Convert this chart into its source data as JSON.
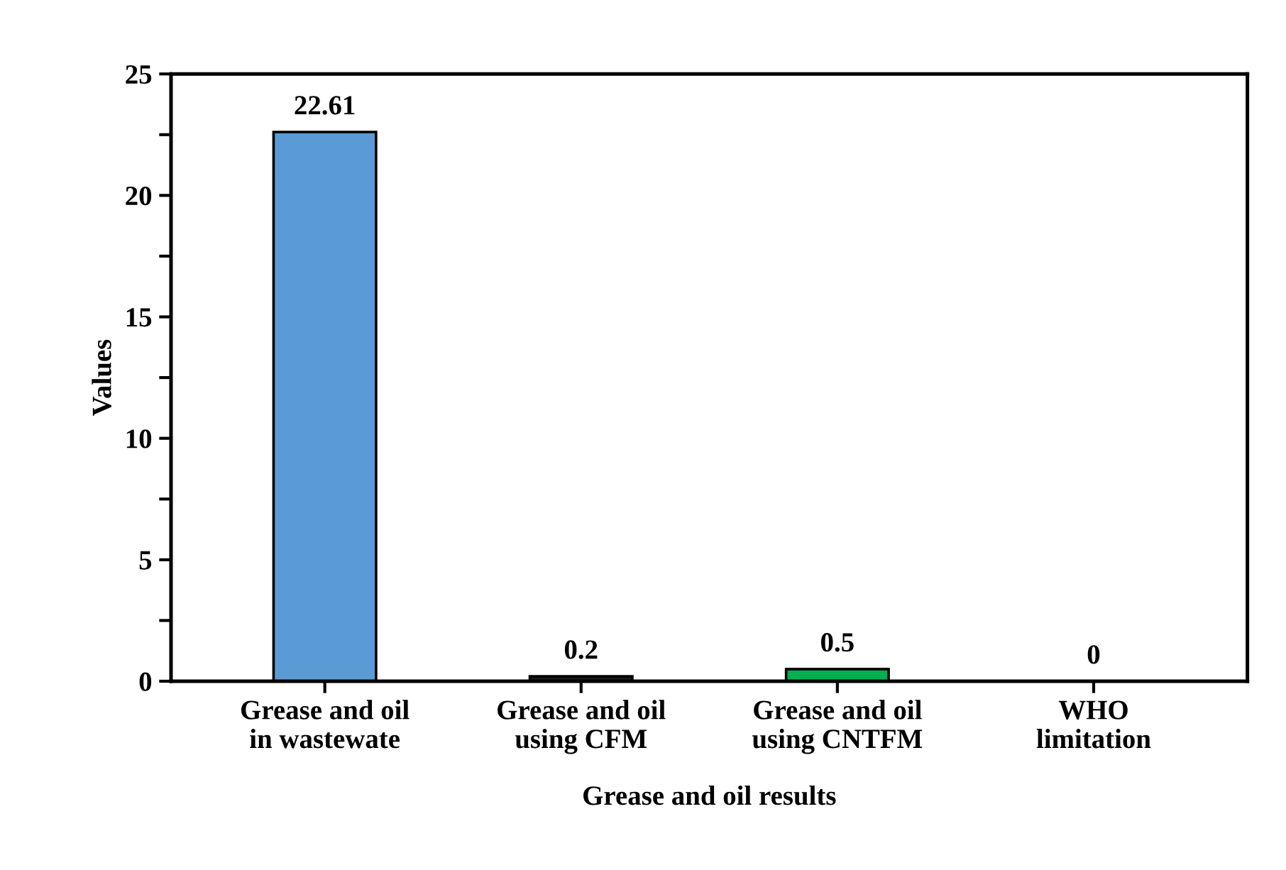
{
  "chart_data": {
    "type": "bar",
    "xlabel": "Grease and oil results",
    "ylabel": "Values",
    "categories": [
      "Grease and oil\nin wastewate",
      "Grease and oil\nusing CFM",
      "Grease and oil\nusing CNTFM",
      "WHO\nlimitation"
    ],
    "values": [
      22.61,
      0.2,
      0.5,
      0
    ],
    "colors": [
      "#5b9bd5",
      "#1a1a1a",
      "#00b050",
      "#000000"
    ],
    "ylim": [
      0,
      25
    ],
    "yticks": [
      0,
      {
        "value": 2.5,
        "label": null
      },
      5,
      {
        "value": 7.5,
        "label": null
      },
      10,
      {
        "value": 12.5,
        "label": null
      },
      15,
      {
        "value": 17.5,
        "label": null
      },
      20,
      {
        "value": 22.5,
        "label": null
      },
      25
    ],
    "data_labels": true,
    "grid": false,
    "legend": false
  }
}
